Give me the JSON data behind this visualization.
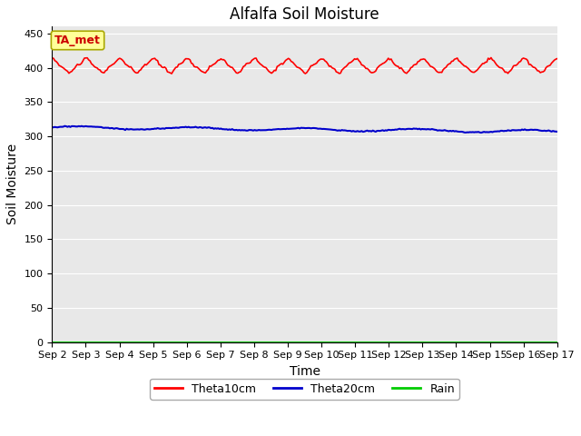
{
  "title": "Alfalfa Soil Moisture",
  "xlabel": "Time",
  "ylabel": "Soil Moisture",
  "ylim": [
    0,
    460
  ],
  "yticks": [
    0,
    50,
    100,
    150,
    200,
    250,
    300,
    350,
    400,
    450
  ],
  "x_labels": [
    "Sep 2",
    "Sep 3",
    "Sep 4",
    "Sep 5",
    "Sep 6",
    "Sep 7",
    "Sep 8",
    "Sep 9",
    "Sep 10",
    "Sep 11",
    "Sep 12",
    "Sep 13",
    "Sep 14",
    "Sep 15",
    "Sep 16",
    "Sep 17"
  ],
  "theta10_color": "#ff0000",
  "theta20_color": "#0000cc",
  "rain_color": "#00cc00",
  "bg_color": "#e8e8e8",
  "fig_color": "#ffffff",
  "annotation_text": "TA_met",
  "annotation_bg": "#ffff99",
  "annotation_border": "#aaa800",
  "legend_labels": [
    "Theta10cm",
    "Theta20cm",
    "Rain"
  ],
  "title_fontsize": 12,
  "axis_fontsize": 10,
  "tick_fontsize": 8,
  "legend_fontsize": 9
}
